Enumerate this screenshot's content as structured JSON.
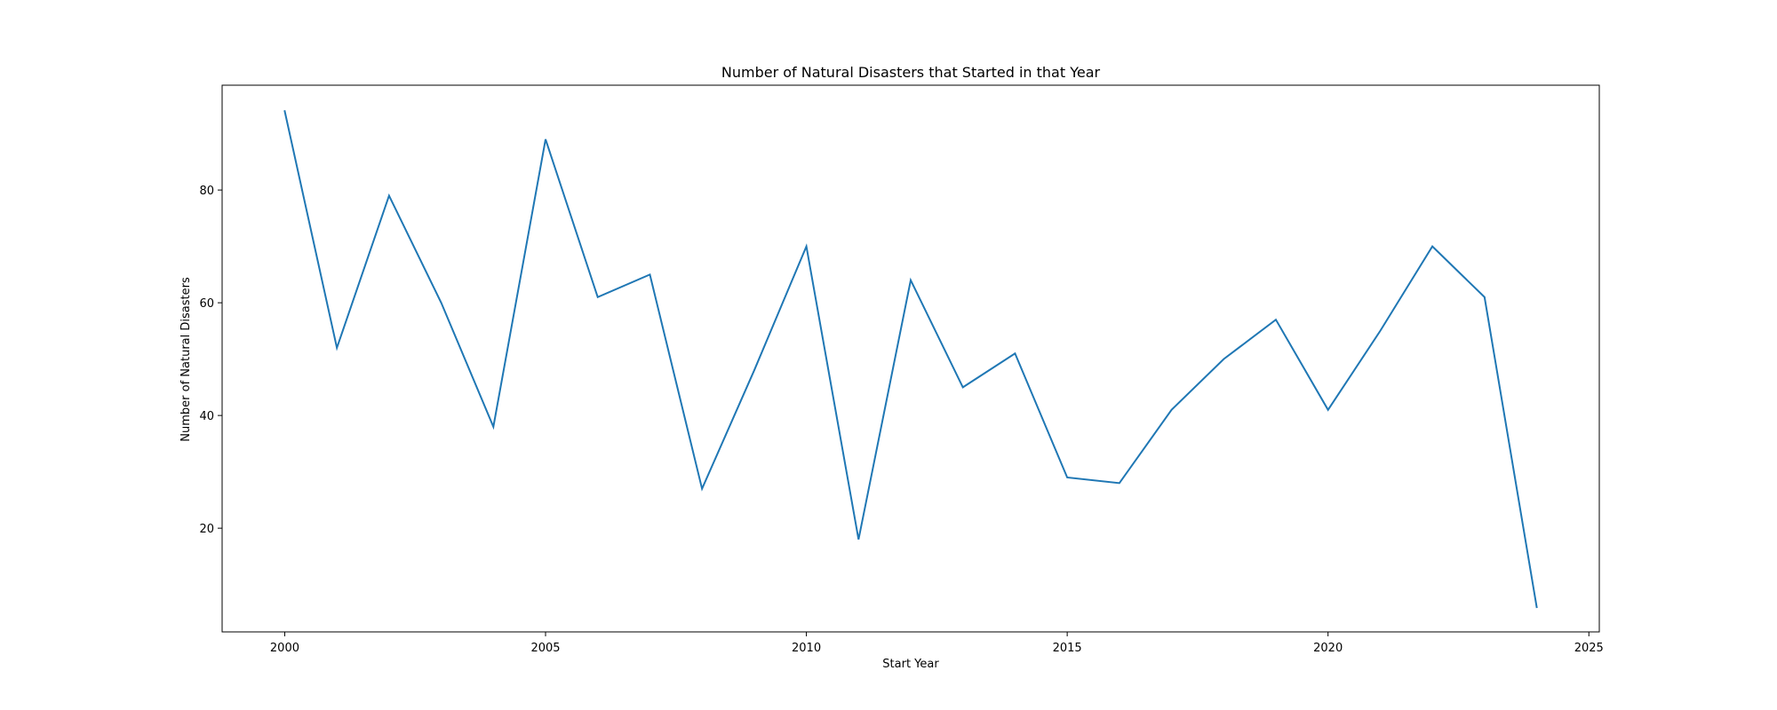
{
  "chart_data": {
    "type": "line",
    "title": "Number of Natural Disasters that Started in that Year",
    "xlabel": "Start Year",
    "ylabel": "Number of Natural Disasters",
    "xlim": [
      1998.8,
      2025.2
    ],
    "ylim": [
      1.6,
      98.6
    ],
    "xticks": [
      2000,
      2005,
      2010,
      2015,
      2020,
      2025
    ],
    "yticks": [
      20,
      40,
      60,
      80
    ],
    "grid": false,
    "line_color": "#1f77b4",
    "series": [
      {
        "name": "Number of Natural Disasters",
        "x": [
          2000,
          2001,
          2002,
          2003,
          2004,
          2005,
          2006,
          2007,
          2008,
          2009,
          2010,
          2011,
          2012,
          2013,
          2014,
          2015,
          2016,
          2017,
          2018,
          2019,
          2020,
          2021,
          2022,
          2023,
          2024
        ],
        "values": [
          94,
          52,
          79,
          60,
          38,
          89,
          61,
          65,
          27,
          48,
          70,
          18,
          64,
          45,
          51,
          29,
          28,
          41,
          50,
          57,
          41,
          55,
          70,
          61,
          6
        ]
      }
    ]
  }
}
